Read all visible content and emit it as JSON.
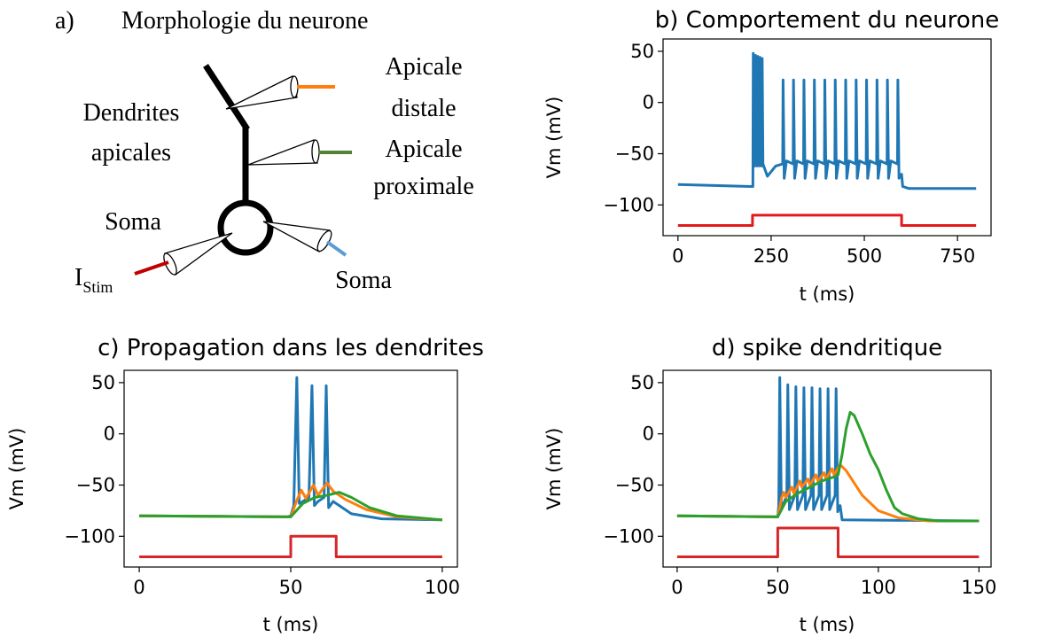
{
  "diagram": {
    "panel": "a)",
    "title": "Morphologie du neurone",
    "labels": {
      "dendrites_1": "Dendrites",
      "dendrites_2": "apicales",
      "distal_1": "Apicale",
      "distal_2": "distale",
      "proximal_1": "Apicale",
      "proximal_2": "proximale",
      "soma_left": "Soma",
      "stim": "I",
      "stim_sub": "Stim",
      "soma_right": "Soma"
    }
  },
  "chart_data": [
    {
      "type": "line",
      "title": "b) Comportement du neurone",
      "x_label": "t (ms)",
      "y_label": "Vm (mV)",
      "xlim": [
        -40,
        840
      ],
      "ylim": [
        -130,
        62
      ],
      "xticks": [
        0,
        250,
        500,
        750
      ],
      "yticks": [
        {
          "value": -100,
          "label": "−100"
        },
        {
          "value": -50,
          "label": "−50"
        },
        0,
        50
      ],
      "series": [
        {
          "color": "#1f77b4",
          "x": [
            0,
            195,
            201,
            202,
            204,
            207,
            208,
            210,
            213,
            214,
            216,
            219,
            220,
            222,
            225,
            226,
            228,
            240,
            262,
            281,
            282,
            285,
            291,
            309,
            310,
            313,
            319,
            337,
            338,
            341,
            347,
            365,
            366,
            369,
            375,
            393,
            394,
            397,
            403,
            421,
            422,
            425,
            431,
            449,
            450,
            453,
            459,
            477,
            478,
            481,
            487,
            505,
            506,
            509,
            515,
            533,
            534,
            537,
            543,
            561,
            562,
            565,
            571,
            589,
            590,
            593,
            600,
            603,
            620,
            800
          ],
          "values": [
            -80,
            -82,
            -82,
            48,
            -58,
            -62,
            46,
            -58,
            -62,
            45,
            -58,
            -62,
            44,
            -58,
            -62,
            43,
            -60,
            -72,
            -62,
            -60,
            22,
            -74,
            -57,
            -60,
            22,
            -74,
            -57,
            -60,
            22,
            -74,
            -57,
            -60,
            22,
            -74,
            -57,
            -60,
            22,
            -74,
            -57,
            -60,
            22,
            -74,
            -57,
            -60,
            22,
            -74,
            -57,
            -60,
            22,
            -74,
            -57,
            -60,
            22,
            -74,
            -57,
            -60,
            22,
            -74,
            -57,
            -60,
            22,
            -74,
            -57,
            -60,
            22,
            -74,
            -70,
            -82,
            -84,
            -84
          ]
        },
        {
          "color": "#e31a1c",
          "x": [
            0,
            200,
            200,
            600,
            600,
            800
          ],
          "values": [
            -120,
            -120,
            -110,
            -110,
            -120,
            -120
          ]
        }
      ]
    },
    {
      "type": "line",
      "title": "c) Propagation dans les dendrites",
      "x_label": "t (ms)",
      "y_label": "Vm (mV)",
      "xlim": [
        -5,
        105
      ],
      "ylim": [
        -130,
        62
      ],
      "xticks": [
        0,
        50,
        100
      ],
      "yticks": [
        {
          "value": -100,
          "label": "−100"
        },
        {
          "value": -50,
          "label": "−50"
        },
        0,
        50
      ],
      "series": [
        {
          "color": "#1f77b4",
          "x": [
            0,
            49,
            50,
            51,
            52,
            52.8,
            54,
            56,
            57,
            57.8,
            59,
            61,
            61.7,
            62.5,
            64,
            66,
            70,
            80,
            100
          ],
          "values": [
            -80,
            -81,
            -80,
            -70,
            55,
            -68,
            -66,
            -62,
            47,
            -70,
            -66,
            -62,
            47,
            -72,
            -66,
            -70,
            -78,
            -83,
            -84
          ]
        },
        {
          "color": "#ff7f0e",
          "x": [
            0,
            50,
            52,
            53.5,
            55,
            57.5,
            59,
            62,
            64,
            68,
            75,
            85,
            100
          ],
          "values": [
            -80,
            -81,
            -65,
            -55,
            -63,
            -50,
            -60,
            -48,
            -56,
            -64,
            -74,
            -81,
            -84
          ]
        },
        {
          "color": "#2ca02c",
          "x": [
            0,
            50,
            54,
            58,
            62,
            66,
            70,
            76,
            85,
            100
          ],
          "values": [
            -80,
            -81,
            -68,
            -62,
            -60,
            -57,
            -62,
            -72,
            -80,
            -84
          ]
        },
        {
          "color": "#d62728",
          "x": [
            0,
            50,
            50,
            65,
            65,
            100
          ],
          "values": [
            -120,
            -120,
            -100,
            -100,
            -120,
            -120
          ]
        }
      ]
    },
    {
      "type": "line",
      "title": "d) spike dendritique",
      "x_label": "t (ms)",
      "y_label": "Vm (mV)",
      "xlim": [
        -7,
        156
      ],
      "ylim": [
        -130,
        62
      ],
      "xticks": [
        0,
        50,
        100,
        150
      ],
      "yticks": [
        {
          "value": -100,
          "label": "−100"
        },
        {
          "value": -50,
          "label": "−50"
        },
        0,
        50
      ],
      "series": [
        {
          "color": "#1f77b4",
          "x": [
            0,
            50,
            50.5,
            51,
            51.8,
            54.5,
            55,
            55.8,
            58.5,
            59,
            59.8,
            62.5,
            63,
            63.8,
            66.5,
            67,
            67.8,
            70.5,
            71,
            71.8,
            74.5,
            75,
            75.8,
            78.5,
            79,
            79.8,
            81,
            82,
            150
          ],
          "values": [
            -80,
            -81,
            -70,
            55,
            -74,
            -60,
            48,
            -74,
            -60,
            46,
            -74,
            -60,
            45,
            -74,
            -60,
            45,
            -74,
            -60,
            44,
            -74,
            -60,
            44,
            -74,
            -60,
            44,
            -76,
            -70,
            -84,
            -85
          ]
        },
        {
          "color": "#ff7f0e",
          "x": [
            0,
            50,
            52,
            53,
            54,
            57,
            58,
            61,
            62,
            65,
            66,
            69,
            70,
            73,
            74,
            77,
            78,
            81,
            84,
            88,
            92,
            100,
            110,
            125,
            150
          ],
          "values": [
            -80,
            -81,
            -62,
            -57,
            -62,
            -52,
            -58,
            -46,
            -52,
            -44,
            -50,
            -40,
            -46,
            -38,
            -44,
            -34,
            -40,
            -30,
            -36,
            -48,
            -60,
            -75,
            -82,
            -85,
            -85
          ]
        },
        {
          "color": "#2ca02c",
          "x": [
            0,
            50,
            54,
            60,
            66,
            72,
            78,
            80,
            82,
            84,
            86,
            88,
            92,
            96,
            100,
            104,
            108,
            112,
            120,
            130,
            150
          ],
          "values": [
            -80,
            -81,
            -66,
            -58,
            -52,
            -46,
            -42,
            -40,
            -20,
            5,
            21,
            18,
            0,
            -20,
            -35,
            -55,
            -72,
            -78,
            -83,
            -85,
            -85
          ]
        },
        {
          "color": "#d62728",
          "x": [
            0,
            50,
            50,
            80,
            80,
            150
          ],
          "values": [
            -120,
            -120,
            -92,
            -92,
            -120,
            -120
          ]
        }
      ]
    }
  ]
}
